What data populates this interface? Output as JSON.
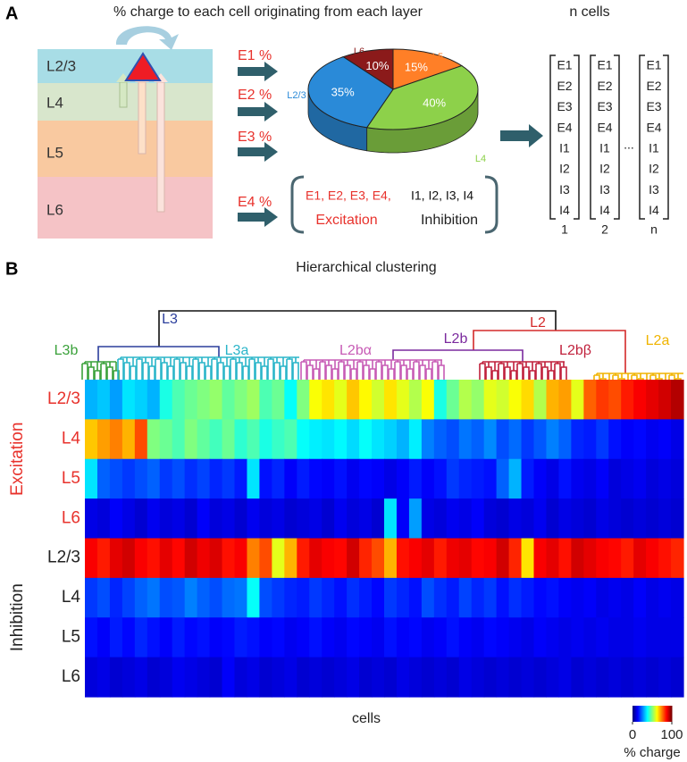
{
  "panel_a": {
    "label": "A",
    "title": "% charge to each cell originating from each layer",
    "n_cells_label": "n cells",
    "layers": [
      "L2/3",
      "L4",
      "L5",
      "L6"
    ],
    "arrow_labels": [
      "E1 %",
      "E2 %",
      "E3 %",
      "E4 %"
    ],
    "pie": {
      "type": "pie",
      "categories": [
        "L6",
        "L5",
        "L4",
        "L2/3"
      ],
      "values": [
        10,
        15,
        40,
        35
      ],
      "value_labels": [
        "10%",
        "15%",
        "40%",
        "35%"
      ],
      "colors": [
        "#8b1a1a",
        "#ff7f27",
        "#8dd14a",
        "#2a8ad8"
      ]
    },
    "formula": {
      "excitation_terms": "E1, E2, E3, E4,",
      "inhibition_terms": "I1, I2, I3, I4",
      "excitation": "Excitation",
      "inhibition": "Inhibition"
    },
    "vector": {
      "entries": [
        "E1",
        "E2",
        "E3",
        "E4",
        "I1",
        "I2",
        "I3",
        "I4"
      ],
      "columns": [
        "1",
        "2",
        "n"
      ],
      "ellipsis": "..."
    }
  },
  "panel_b": {
    "label": "B",
    "title": "Hierarchical clustering",
    "xlabel": "cells",
    "clusters": [
      {
        "label": "L3",
        "color": "#2b3e9c"
      },
      {
        "label": "L2",
        "color": "#d42a2a"
      },
      {
        "label": "L3b",
        "color": "#3aa13a"
      },
      {
        "label": "L3a",
        "color": "#2ab5c9"
      },
      {
        "label": "L2bα",
        "color": "#c75bb5"
      },
      {
        "label": "L2b",
        "color": "#7b2a9e"
      },
      {
        "label": "L2bβ",
        "color": "#c0213c"
      },
      {
        "label": "L2a",
        "color": "#f0b400"
      }
    ],
    "row_groups": [
      {
        "label": "Excitation",
        "color": "#e8322c",
        "rows": [
          "L2/3",
          "L4",
          "L5",
          "L6"
        ]
      },
      {
        "label": "Inhibition",
        "color": "#222222",
        "rows": [
          "L2/3",
          "L4",
          "L5",
          "L6"
        ]
      }
    ],
    "heatmap": {
      "type": "heatmap",
      "colormap": "jet",
      "clim": [
        0,
        100
      ],
      "colorbar_ticks": [
        0,
        100
      ],
      "colorbar_label": "% charge",
      "values": [
        [
          30,
          32,
          28,
          35,
          33,
          30,
          40,
          45,
          48,
          50,
          52,
          47,
          50,
          53,
          45,
          48,
          38,
          50,
          62,
          65,
          60,
          68,
          63,
          58,
          65,
          60,
          55,
          62,
          40,
          48,
          55,
          52,
          60,
          58,
          62,
          66,
          55,
          70,
          72,
          60,
          78,
          82,
          80,
          85,
          88,
          90,
          92,
          95
        ],
        [
          68,
          72,
          75,
          70,
          80,
          50,
          48,
          45,
          50,
          47,
          44,
          48,
          42,
          45,
          40,
          43,
          45,
          38,
          36,
          35,
          37,
          34,
          38,
          35,
          33,
          30,
          36,
          25,
          22,
          20,
          24,
          22,
          26,
          20,
          23,
          18,
          21,
          25,
          22,
          16,
          15,
          18,
          14,
          12,
          13,
          11,
          12,
          10
        ],
        [
          35,
          22,
          20,
          18,
          20,
          22,
          18,
          20,
          17,
          19,
          16,
          18,
          15,
          35,
          14,
          16,
          12,
          15,
          13,
          12,
          14,
          11,
          13,
          12,
          10,
          12,
          15,
          12,
          14,
          18,
          16,
          15,
          14,
          22,
          30,
          15,
          12,
          10,
          14,
          11,
          10,
          12,
          9,
          10,
          11,
          9,
          10,
          9
        ],
        [
          10,
          9,
          12,
          10,
          8,
          11,
          9,
          10,
          8,
          12,
          9,
          10,
          8,
          11,
          9,
          10,
          8,
          9,
          10,
          8,
          11,
          9,
          10,
          8,
          35,
          12,
          28,
          10,
          9,
          11,
          10,
          12,
          9,
          8,
          10,
          9,
          11,
          8,
          10,
          9,
          8,
          10,
          9,
          8,
          9,
          8,
          9,
          8
        ],
        [
          88,
          85,
          90,
          92,
          88,
          86,
          90,
          87,
          92,
          89,
          91,
          86,
          88,
          75,
          80,
          60,
          70,
          85,
          90,
          88,
          87,
          92,
          84,
          80,
          70,
          86,
          88,
          90,
          85,
          89,
          90,
          87,
          88,
          92,
          84,
          65,
          88,
          90,
          86,
          92,
          90,
          88,
          87,
          85,
          90,
          88,
          86,
          84
        ],
        [
          18,
          20,
          16,
          19,
          22,
          24,
          20,
          21,
          25,
          22,
          20,
          23,
          24,
          38,
          20,
          18,
          16,
          15,
          18,
          16,
          14,
          17,
          15,
          13,
          18,
          16,
          14,
          20,
          17,
          15,
          19,
          16,
          18,
          14,
          17,
          15,
          13,
          14,
          12,
          11,
          12,
          10,
          11,
          10,
          12,
          10,
          11,
          10
        ],
        [
          14,
          12,
          15,
          13,
          16,
          14,
          12,
          15,
          13,
          14,
          12,
          13,
          15,
          14,
          12,
          13,
          11,
          12,
          14,
          12,
          11,
          13,
          12,
          11,
          14,
          12,
          13,
          11,
          12,
          14,
          12,
          11,
          13,
          12,
          11,
          10,
          12,
          11,
          10,
          11,
          10,
          11,
          10,
          10,
          11,
          10,
          10,
          10
        ],
        [
          9,
          10,
          8,
          9,
          10,
          8,
          9,
          11,
          10,
          9,
          8,
          12,
          9,
          10,
          8,
          9,
          10,
          8,
          9,
          8,
          9,
          10,
          8,
          9,
          8,
          10,
          9,
          8,
          9,
          8,
          10,
          9,
          8,
          9,
          8,
          9,
          8,
          9,
          10,
          8,
          9,
          8,
          9,
          8,
          9,
          8,
          9,
          8
        ]
      ]
    }
  }
}
